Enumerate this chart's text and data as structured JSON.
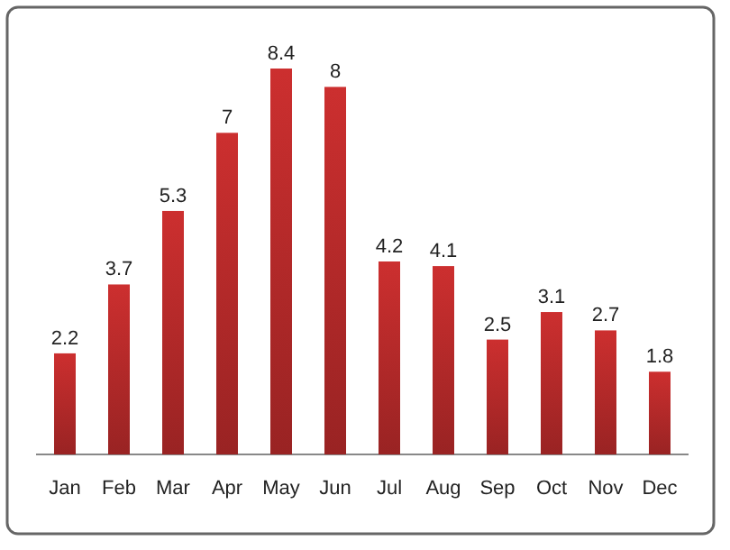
{
  "chart_data": {
    "type": "bar",
    "categories": [
      "Jan",
      "Feb",
      "Mar",
      "Apr",
      "May",
      "Jun",
      "Jul",
      "Aug",
      "Sep",
      "Oct",
      "Nov",
      "Dec"
    ],
    "values": [
      2.2,
      3.7,
      5.3,
      7,
      8.4,
      8,
      4.2,
      4.1,
      2.5,
      3.1,
      2.7,
      1.8
    ],
    "color": "#cc2f2f",
    "data_labels": true
  }
}
